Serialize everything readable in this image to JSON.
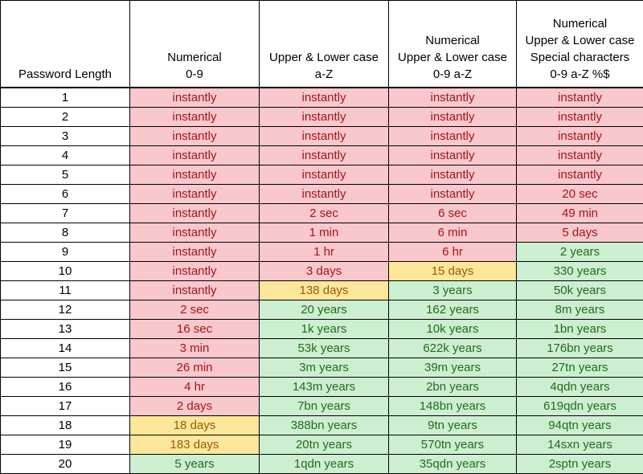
{
  "chart_data": {
    "type": "table",
    "title": "",
    "columns": [
      {
        "lines": [
          "Password Length"
        ]
      },
      {
        "lines": [
          "Numerical",
          "0-9"
        ]
      },
      {
        "lines": [
          "Upper & Lower case",
          "a-Z"
        ]
      },
      {
        "lines": [
          "Numerical",
          "Upper & Lower case",
          "0-9 a-Z"
        ]
      },
      {
        "lines": [
          "Numerical",
          "Upper & Lower case",
          "Special characters",
          "0-9 a-Z %$"
        ]
      }
    ],
    "status_colors": {
      "r": {
        "background": "#f8c8cc",
        "text": "#a3151c"
      },
      "y": {
        "background": "#fde79a",
        "text": "#9b5b06"
      },
      "g": {
        "background": "#cdefd1",
        "text": "#226b1f"
      }
    },
    "rows": [
      {
        "length": "1",
        "cells": [
          {
            "text": "instantly",
            "status": "r"
          },
          {
            "text": "instantly",
            "status": "r"
          },
          {
            "text": "instantly",
            "status": "r"
          },
          {
            "text": "instantly",
            "status": "r"
          }
        ]
      },
      {
        "length": "2",
        "cells": [
          {
            "text": "instantly",
            "status": "r"
          },
          {
            "text": "instantly",
            "status": "r"
          },
          {
            "text": "instantly",
            "status": "r"
          },
          {
            "text": "instantly",
            "status": "r"
          }
        ]
      },
      {
        "length": "3",
        "cells": [
          {
            "text": "instantly",
            "status": "r"
          },
          {
            "text": "instantly",
            "status": "r"
          },
          {
            "text": "instantly",
            "status": "r"
          },
          {
            "text": "instantly",
            "status": "r"
          }
        ]
      },
      {
        "length": "4",
        "cells": [
          {
            "text": "instantly",
            "status": "r"
          },
          {
            "text": "instantly",
            "status": "r"
          },
          {
            "text": "instantly",
            "status": "r"
          },
          {
            "text": "instantly",
            "status": "r"
          }
        ]
      },
      {
        "length": "5",
        "cells": [
          {
            "text": "instantly",
            "status": "r"
          },
          {
            "text": "instantly",
            "status": "r"
          },
          {
            "text": "instantly",
            "status": "r"
          },
          {
            "text": "instantly",
            "status": "r"
          }
        ]
      },
      {
        "length": "6",
        "cells": [
          {
            "text": "instantly",
            "status": "r"
          },
          {
            "text": "instantly",
            "status": "r"
          },
          {
            "text": "instantly",
            "status": "r"
          },
          {
            "text": "20 sec",
            "status": "r"
          }
        ]
      },
      {
        "length": "7",
        "cells": [
          {
            "text": "instantly",
            "status": "r"
          },
          {
            "text": "2 sec",
            "status": "r"
          },
          {
            "text": "6 sec",
            "status": "r"
          },
          {
            "text": "49 min",
            "status": "r"
          }
        ]
      },
      {
        "length": "8",
        "cells": [
          {
            "text": "instantly",
            "status": "r"
          },
          {
            "text": "1 min",
            "status": "r"
          },
          {
            "text": "6 min",
            "status": "r"
          },
          {
            "text": "5 days",
            "status": "r"
          }
        ]
      },
      {
        "length": "9",
        "cells": [
          {
            "text": "instantly",
            "status": "r"
          },
          {
            "text": "1 hr",
            "status": "r"
          },
          {
            "text": "6 hr",
            "status": "r"
          },
          {
            "text": "2 years",
            "status": "g"
          }
        ]
      },
      {
        "length": "10",
        "cells": [
          {
            "text": "instantly",
            "status": "r"
          },
          {
            "text": "3 days",
            "status": "r"
          },
          {
            "text": "15 days",
            "status": "y"
          },
          {
            "text": "330 years",
            "status": "g"
          }
        ]
      },
      {
        "length": "11",
        "cells": [
          {
            "text": "instantly",
            "status": "r"
          },
          {
            "text": "138 days",
            "status": "y"
          },
          {
            "text": "3 years",
            "status": "g"
          },
          {
            "text": "50k years",
            "status": "g"
          }
        ]
      },
      {
        "length": "12",
        "cells": [
          {
            "text": "2 sec",
            "status": "r"
          },
          {
            "text": "20 years",
            "status": "g"
          },
          {
            "text": "162 years",
            "status": "g"
          },
          {
            "text": "8m years",
            "status": "g"
          }
        ]
      },
      {
        "length": "13",
        "cells": [
          {
            "text": "16 sec",
            "status": "r"
          },
          {
            "text": "1k years",
            "status": "g"
          },
          {
            "text": "10k years",
            "status": "g"
          },
          {
            "text": "1bn years",
            "status": "g"
          }
        ]
      },
      {
        "length": "14",
        "cells": [
          {
            "text": "3 min",
            "status": "r"
          },
          {
            "text": "53k years",
            "status": "g"
          },
          {
            "text": "622k years",
            "status": "g"
          },
          {
            "text": "176bn years",
            "status": "g"
          }
        ]
      },
      {
        "length": "15",
        "cells": [
          {
            "text": "26 min",
            "status": "r"
          },
          {
            "text": "3m years",
            "status": "g"
          },
          {
            "text": "39m years",
            "status": "g"
          },
          {
            "text": "27tn years",
            "status": "g"
          }
        ]
      },
      {
        "length": "16",
        "cells": [
          {
            "text": "4 hr",
            "status": "r"
          },
          {
            "text": "143m years",
            "status": "g"
          },
          {
            "text": "2bn years",
            "status": "g"
          },
          {
            "text": "4qdn years",
            "status": "g"
          }
        ]
      },
      {
        "length": "17",
        "cells": [
          {
            "text": "2 days",
            "status": "r"
          },
          {
            "text": "7bn years",
            "status": "g"
          },
          {
            "text": "148bn years",
            "status": "g"
          },
          {
            "text": "619qdn years",
            "status": "g"
          }
        ]
      },
      {
        "length": "18",
        "cells": [
          {
            "text": "18 days",
            "status": "y"
          },
          {
            "text": "388bn years",
            "status": "g"
          },
          {
            "text": "9tn years",
            "status": "g"
          },
          {
            "text": "94qtn years",
            "status": "g"
          }
        ]
      },
      {
        "length": "19",
        "cells": [
          {
            "text": "183 days",
            "status": "y"
          },
          {
            "text": "20tn years",
            "status": "g"
          },
          {
            "text": "570tn years",
            "status": "g"
          },
          {
            "text": "14sxn years",
            "status": "g"
          }
        ]
      },
      {
        "length": "20",
        "cells": [
          {
            "text": "5 years",
            "status": "g"
          },
          {
            "text": "1qdn years",
            "status": "g"
          },
          {
            "text": "35qdn years",
            "status": "g"
          },
          {
            "text": "2sptn years",
            "status": "g"
          }
        ]
      }
    ]
  }
}
